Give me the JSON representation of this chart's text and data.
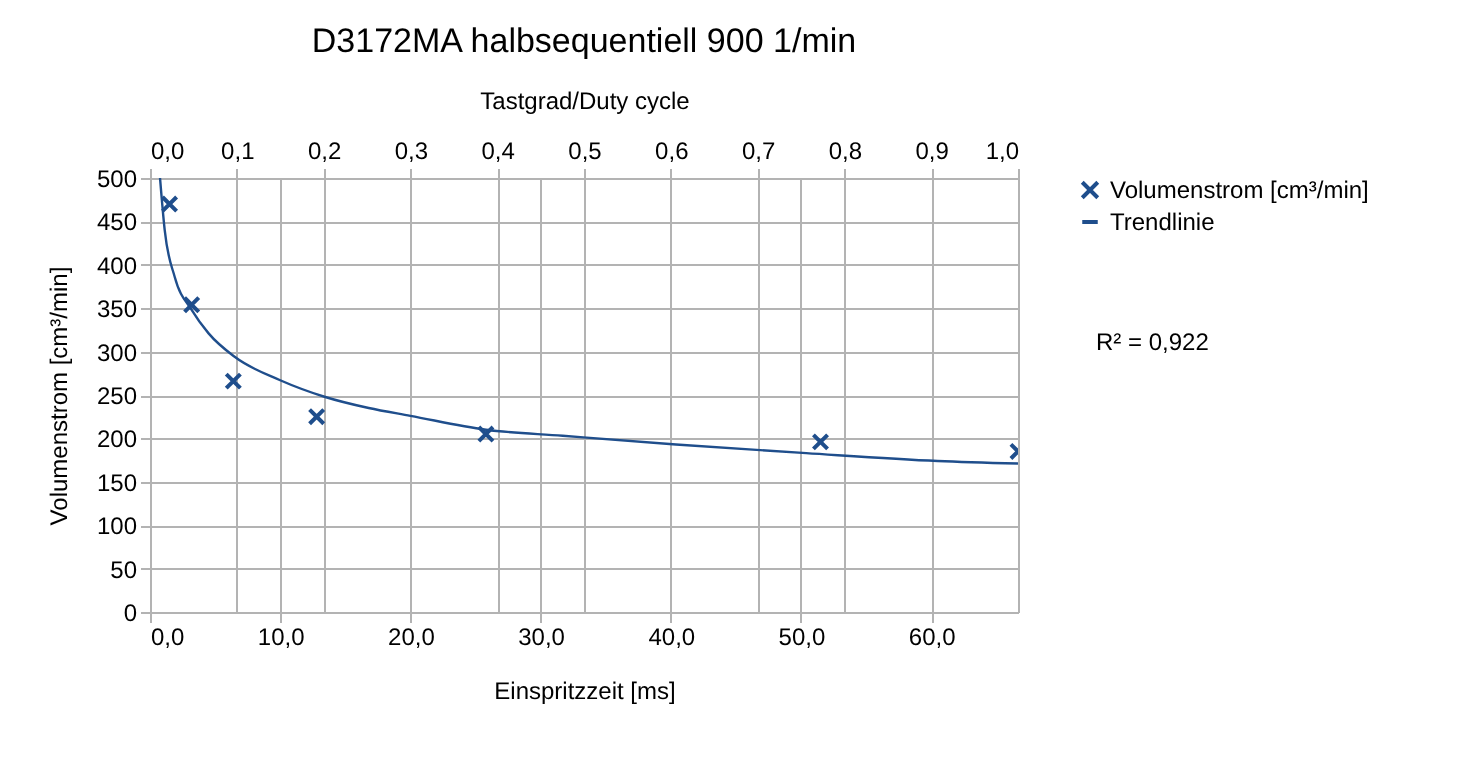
{
  "chart_data": {
    "type": "scatter",
    "title": "D3172MA halbsequentiell 900 1/min",
    "xlabel": "Einspritzzeit [ms]",
    "ylabel": "Volumenstrom [cm³/min]",
    "x2label": "Tastgrad/Duty cycle",
    "xlim": [
      0,
      66.67
    ],
    "xticks": [
      {
        "value": 0,
        "label": "0,0"
      },
      {
        "value": 10,
        "label": "10,0"
      },
      {
        "value": 20,
        "label": "20,0"
      },
      {
        "value": 30,
        "label": "30,0"
      },
      {
        "value": 40,
        "label": "40,0"
      },
      {
        "value": 50,
        "label": "50,0"
      },
      {
        "value": 60,
        "label": "60,0"
      }
    ],
    "x2lim": [
      0,
      1
    ],
    "x2ticks": [
      {
        "value": 0,
        "label": "0,0"
      },
      {
        "value": 0.1,
        "label": "0,1"
      },
      {
        "value": 0.2,
        "label": "0,2"
      },
      {
        "value": 0.3,
        "label": "0,3"
      },
      {
        "value": 0.4,
        "label": "0,4"
      },
      {
        "value": 0.5,
        "label": "0,5"
      },
      {
        "value": 0.6,
        "label": "0,6"
      },
      {
        "value": 0.7,
        "label": "0,7"
      },
      {
        "value": 0.8,
        "label": "0,8"
      },
      {
        "value": 0.9,
        "label": "0,9"
      },
      {
        "value": 1,
        "label": "1,0"
      }
    ],
    "ylim": [
      0,
      500
    ],
    "yticks": [
      0,
      50,
      100,
      150,
      200,
      250,
      300,
      350,
      400,
      450,
      500
    ],
    "grid": true,
    "legend": "right",
    "annotations": [
      "R² = 0,922"
    ],
    "series": [
      {
        "name": "Volumenstrom [cm³/min]",
        "marker": "cross",
        "color": "#1f4e8c",
        "x": [
          1.5,
          3.2,
          6.4,
          12.8,
          25.8,
          51.5,
          66.67
        ],
        "values": [
          470,
          354,
          266,
          225,
          205,
          196,
          185
        ]
      },
      {
        "name": "Trendlinie",
        "type": "line",
        "color": "#1f4e8c",
        "x": [
          0.77,
          1.13,
          1.9,
          3.2,
          4.5,
          6.5,
          10,
          13.4,
          16.8,
          20,
          25.8,
          31.7,
          40.4,
          50.4,
          60.5,
          66.67
        ],
        "values": [
          500,
          440,
          386,
          348,
          321,
          294,
          267,
          248,
          235,
          226,
          210,
          203,
          193,
          183,
          174,
          171
        ]
      }
    ]
  }
}
